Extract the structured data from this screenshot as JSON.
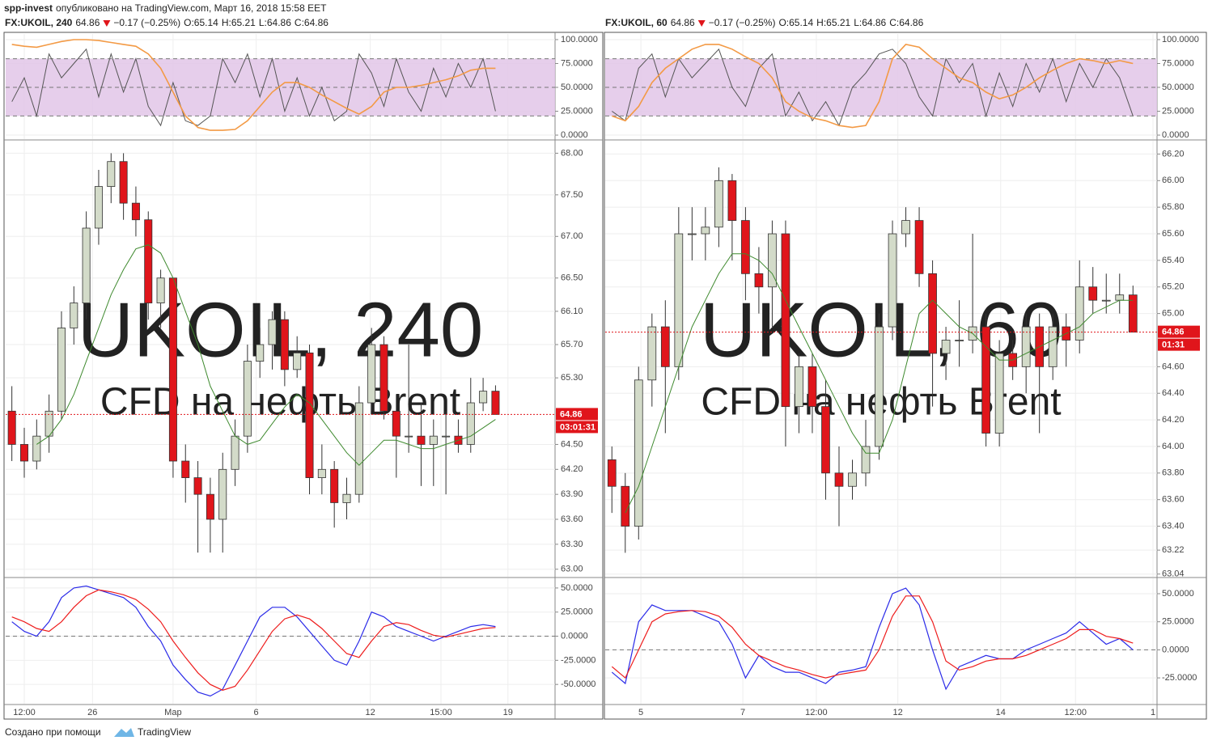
{
  "header": {
    "author": "spp-invest",
    "text": "опубликовано на TradingView.com, Март 16, 2018 15:58 EET"
  },
  "footer": {
    "text": "Создано при помощи",
    "brand": "TradingView"
  },
  "chart_data": [
    {
      "type": "candlestick",
      "symbol": "FX:UKOIL, 240",
      "last": "64.86",
      "change": "−0.17 (−0.25%)",
      "ohlc_legend": [
        {
          "label": "O:",
          "value": "65.14"
        },
        {
          "label": "H:",
          "value": "65.21"
        },
        {
          "label": "L:",
          "value": "64.86"
        },
        {
          "label": "C:",
          "value": "64.86"
        }
      ],
      "watermark": "UKOIL, 240",
      "watermark_sub": "CFD на нефть Brent",
      "up_color": "#d3dbc9",
      "down_color": "#e0151b",
      "ma_color": "#3f8a2f",
      "xlim": [
        -0.5,
        43.8
      ],
      "xticks": [
        {
          "value": 1,
          "label": "12:00"
        },
        {
          "value": 6.5,
          "label": "26"
        },
        {
          "value": 13,
          "label": "Мар"
        },
        {
          "value": 19.7,
          "label": "6"
        },
        {
          "value": 28.9,
          "label": "12"
        },
        {
          "value": 34.6,
          "label": "15:00"
        },
        {
          "value": 40,
          "label": "19"
        }
      ],
      "ylim": [
        62.91,
        68.15
      ],
      "yticks": [
        {
          "value": 68,
          "label": "68.00"
        },
        {
          "value": 67.5,
          "label": "67.50"
        },
        {
          "value": 67,
          "label": "67.00"
        },
        {
          "value": 66.5,
          "label": "66.50"
        },
        {
          "value": 66.1,
          "label": "66.10"
        },
        {
          "value": 65.7,
          "label": "65.70"
        },
        {
          "value": 65.3,
          "label": "65.30"
        },
        {
          "value": 64.5,
          "label": "64.50"
        },
        {
          "value": 64.2,
          "label": "64.20"
        },
        {
          "value": 63.9,
          "label": "63.90"
        },
        {
          "value": 63.6,
          "label": "63.60"
        },
        {
          "value": 63.3,
          "label": "63.30"
        },
        {
          "value": 63,
          "label": "63.00"
        }
      ],
      "last_price": 64.86,
      "countdown": "03:01:31",
      "open": [
        64.9,
        64.5,
        64.3,
        64.6,
        64.9,
        65.9,
        66.2,
        67.1,
        67.6,
        67.9,
        67.4,
        67.2,
        66.2,
        66.5,
        64.3,
        64.1,
        63.9,
        63.6,
        64.2,
        64.6,
        65.5,
        65.7,
        66.0,
        65.4,
        65.6,
        64.1,
        64.2,
        63.8,
        63.9,
        65.0,
        65.7,
        64.9,
        64.6,
        64.6,
        64.5,
        64.6,
        64.6,
        64.5,
        65.0,
        65.14
      ],
      "high": [
        65.2,
        64.7,
        64.8,
        65.1,
        66.1,
        66.4,
        67.3,
        67.8,
        68.0,
        68.0,
        67.6,
        67.3,
        66.6,
        66.5,
        64.5,
        64.3,
        64.1,
        64.4,
        64.8,
        65.7,
        65.9,
        66.1,
        66.1,
        65.8,
        65.7,
        64.5,
        64.3,
        64.1,
        65.2,
        65.9,
        65.8,
        65.1,
        65.7,
        65.0,
        64.8,
        64.9,
        64.8,
        65.3,
        65.3,
        65.21
      ],
      "low": [
        64.3,
        64.1,
        64.2,
        64.4,
        64.8,
        65.7,
        66.0,
        66.9,
        67.4,
        67.2,
        67.0,
        66.0,
        65.9,
        64.1,
        63.8,
        63.2,
        63.2,
        63.2,
        64.0,
        64.4,
        65.3,
        65.4,
        65.2,
        65.3,
        63.9,
        63.9,
        63.5,
        63.6,
        63.8,
        64.9,
        64.8,
        64.1,
        64.4,
        64.0,
        64.0,
        63.9,
        64.4,
        64.4,
        64.9,
        64.86
      ],
      "close": [
        64.5,
        64.3,
        64.6,
        64.9,
        65.9,
        66.2,
        67.1,
        67.6,
        67.9,
        67.4,
        67.2,
        66.2,
        66.5,
        64.3,
        64.1,
        63.9,
        63.6,
        64.2,
        64.6,
        65.5,
        65.7,
        66.0,
        65.4,
        65.6,
        64.1,
        64.2,
        63.8,
        63.9,
        65.0,
        65.7,
        64.9,
        64.6,
        64.6,
        64.5,
        64.6,
        64.6,
        64.5,
        65.0,
        65.14,
        64.86
      ],
      "ma": [
        null,
        null,
        64.5,
        64.6,
        64.8,
        65.1,
        65.5,
        65.9,
        66.3,
        66.6,
        66.85,
        66.9,
        66.8,
        66.5,
        66.1,
        65.7,
        65.2,
        64.9,
        64.6,
        64.5,
        64.55,
        64.75,
        64.95,
        65.1,
        65.0,
        64.8,
        64.6,
        64.4,
        64.25,
        64.4,
        64.55,
        64.55,
        64.5,
        64.45,
        64.45,
        64.5,
        64.55,
        64.6,
        64.7,
        64.8
      ],
      "stoch": {
        "ylim": [
          -4.2,
          105.9
        ],
        "yticks": [
          {
            "value": 100,
            "label": "100.0000"
          },
          {
            "value": 75,
            "label": "75.0000"
          },
          {
            "value": 50,
            "label": "50.0000"
          },
          {
            "value": 25,
            "label": "25.0000"
          },
          {
            "value": 0,
            "label": "0.0000"
          }
        ],
        "bands": [
          20,
          50,
          80
        ],
        "band_color": "#e2c6e8",
        "series": [
          {
            "color": "#555555",
            "values": [
              35,
              60,
              20,
              85,
              60,
              75,
              90,
              40,
              85,
              45,
              80,
              30,
              10,
              55,
              15,
              10,
              20,
              80,
              55,
              85,
              40,
              80,
              25,
              60,
              20,
              50,
              15,
              25,
              85,
              65,
              30,
              80,
              45,
              25,
              70,
              40,
              75,
              50,
              80,
              25
            ]
          },
          {
            "color": "#f39a45",
            "values": [
              95,
              93,
              92,
              95,
              98,
              100,
              100,
              99,
              97,
              95,
              93,
              85,
              70,
              45,
              20,
              8,
              5,
              5,
              6,
              15,
              30,
              45,
              55,
              55,
              50,
              42,
              35,
              28,
              22,
              30,
              45,
              50,
              50,
              52,
              55,
              58,
              62,
              68,
              70,
              70
            ]
          }
        ]
      },
      "macd": {
        "ylim": [
          -70,
          60
        ],
        "yticks": [
          {
            "value": 50,
            "label": "50.0000"
          },
          {
            "value": 25,
            "label": "25.0000"
          },
          {
            "value": 0,
            "label": "0.0000"
          },
          {
            "value": -25,
            "label": "-25.0000"
          },
          {
            "value": -50,
            "label": "-50.0000"
          }
        ],
        "bands": [
          0
        ],
        "series": [
          {
            "color": "#2b2be8",
            "values": [
              15,
              5,
              0,
              15,
              40,
              50,
              52,
              48,
              44,
              40,
              30,
              10,
              -5,
              -30,
              -45,
              -58,
              -62,
              -55,
              -30,
              -5,
              20,
              30,
              30,
              20,
              5,
              -10,
              -25,
              -30,
              -5,
              25,
              20,
              10,
              5,
              0,
              -5,
              0,
              5,
              10,
              12,
              10
            ]
          },
          {
            "color": "#ee1c1c",
            "values": [
              20,
              15,
              8,
              5,
              15,
              30,
              42,
              48,
              46,
              43,
              38,
              28,
              15,
              -5,
              -22,
              -38,
              -50,
              -56,
              -52,
              -35,
              -15,
              5,
              18,
              22,
              18,
              8,
              -5,
              -18,
              -22,
              -5,
              10,
              14,
              12,
              6,
              1,
              -1,
              2,
              5,
              8,
              9
            ]
          }
        ]
      }
    },
    {
      "type": "candlestick",
      "symbol": "FX:UKOIL, 60",
      "last": "64.86",
      "change": "−0.17 (−0.25%)",
      "ohlc_legend": [
        {
          "label": "O:",
          "value": "65.14"
        },
        {
          "label": "H:",
          "value": "65.21"
        },
        {
          "label": "L:",
          "value": "64.86"
        },
        {
          "label": "C:",
          "value": "64.86"
        }
      ],
      "watermark": "UKOIL, 60",
      "watermark_sub": "CFD на нефть Brent",
      "up_color": "#d3dbc9",
      "down_color": "#e0151b",
      "ma_color": "#3f8a2f",
      "xlim": [
        -0.5,
        40.8
      ],
      "xticks": [
        {
          "value": 2.17,
          "label": "5"
        },
        {
          "value": 9.8,
          "label": "7"
        },
        {
          "value": 15.3,
          "label": "12:00"
        },
        {
          "value": 21.4,
          "label": "12"
        },
        {
          "value": 29.1,
          "label": "14"
        },
        {
          "value": 34.7,
          "label": "12:00"
        },
        {
          "value": 40.5,
          "label": "1"
        }
      ],
      "ylim": [
        63.02,
        66.3
      ],
      "yticks": [
        {
          "value": 66.2,
          "label": "66.20"
        },
        {
          "value": 66,
          "label": "66.00"
        },
        {
          "value": 65.8,
          "label": "65.80"
        },
        {
          "value": 65.6,
          "label": "65.60"
        },
        {
          "value": 65.4,
          "label": "65.40"
        },
        {
          "value": 65.2,
          "label": "65.20"
        },
        {
          "value": 65,
          "label": "65.00"
        },
        {
          "value": 64.6,
          "label": "64.60"
        },
        {
          "value": 64.4,
          "label": "64.40"
        },
        {
          "value": 64.2,
          "label": "64.20"
        },
        {
          "value": 64,
          "label": "64.00"
        },
        {
          "value": 63.8,
          "label": "63.80"
        },
        {
          "value": 63.6,
          "label": "63.60"
        },
        {
          "value": 63.4,
          "label": "63.40"
        },
        {
          "value": 63.22,
          "label": "63.22"
        },
        {
          "value": 63.04,
          "label": "63.04"
        }
      ],
      "last_price": 64.86,
      "countdown": "01:31",
      "open": [
        63.9,
        63.7,
        63.4,
        64.5,
        64.9,
        64.6,
        65.6,
        65.6,
        65.65,
        66.0,
        65.7,
        65.3,
        65.2,
        65.6,
        64.3,
        64.6,
        64.3,
        63.8,
        63.7,
        63.8,
        64.0,
        64.9,
        65.6,
        65.7,
        65.3,
        64.7,
        64.8,
        64.8,
        64.9,
        64.1,
        64.7,
        64.6,
        64.9,
        64.6,
        64.9,
        64.8,
        65.2,
        65.1,
        65.1,
        65.14
      ],
      "high": [
        64.0,
        63.8,
        64.6,
        65.0,
        65.1,
        65.8,
        65.8,
        65.8,
        66.1,
        66.05,
        65.8,
        65.5,
        65.7,
        65.7,
        64.7,
        64.7,
        64.5,
        64.0,
        63.9,
        64.2,
        65.0,
        65.7,
        65.8,
        65.8,
        65.4,
        64.9,
        65.1,
        65.6,
        65.0,
        64.8,
        64.8,
        65.0,
        65.0,
        65.0,
        65.0,
        65.4,
        65.35,
        65.3,
        65.3,
        65.21
      ],
      "low": [
        63.5,
        63.2,
        63.3,
        64.3,
        64.1,
        64.5,
        65.4,
        65.4,
        65.5,
        65.4,
        65.1,
        65.0,
        64.9,
        64.0,
        64.1,
        64.1,
        63.6,
        63.4,
        63.6,
        63.7,
        63.9,
        64.8,
        65.5,
        65.2,
        64.3,
        64.5,
        64.6,
        64.7,
        64.0,
        64.0,
        64.5,
        64.4,
        64.1,
        64.5,
        64.6,
        64.7,
        65.0,
        65.0,
        65.0,
        64.86
      ],
      "close": [
        63.7,
        63.4,
        64.5,
        64.9,
        64.6,
        65.6,
        65.6,
        65.65,
        66.0,
        65.7,
        65.3,
        65.2,
        65.6,
        64.3,
        64.6,
        64.3,
        63.8,
        63.7,
        63.8,
        64.0,
        64.9,
        65.6,
        65.7,
        65.3,
        64.7,
        64.8,
        64.8,
        64.9,
        64.1,
        64.7,
        64.6,
        64.9,
        64.6,
        64.9,
        64.8,
        65.2,
        65.1,
        65.1,
        65.14,
        64.86
      ],
      "ma": [
        null,
        63.5,
        63.7,
        64.0,
        64.3,
        64.6,
        64.9,
        65.1,
        65.3,
        65.45,
        65.45,
        65.4,
        65.3,
        65.1,
        64.9,
        64.7,
        64.5,
        64.3,
        64.1,
        63.95,
        63.95,
        64.2,
        64.6,
        65.0,
        65.1,
        65.0,
        64.9,
        64.85,
        64.75,
        64.65,
        64.65,
        64.7,
        64.75,
        64.8,
        64.85,
        64.9,
        65.0,
        65.05,
        65.1,
        65.1
      ],
      "stoch": {
        "ylim": [
          -4.2,
          105.9
        ],
        "yticks": [
          {
            "value": 100,
            "label": "100.0000"
          },
          {
            "value": 75,
            "label": "75.0000"
          },
          {
            "value": 50,
            "label": "50.0000"
          },
          {
            "value": 25,
            "label": "25.0000"
          },
          {
            "value": 0,
            "label": "0.0000"
          }
        ],
        "bands": [
          20,
          50,
          80
        ],
        "band_color": "#e2c6e8",
        "series": [
          {
            "color": "#555555",
            "values": [
              25,
              15,
              70,
              85,
              40,
              80,
              60,
              75,
              90,
              50,
              30,
              70,
              85,
              20,
              45,
              15,
              35,
              10,
              50,
              65,
              85,
              90,
              75,
              40,
              20,
              80,
              55,
              75,
              20,
              65,
              30,
              75,
              45,
              80,
              35,
              75,
              50,
              80,
              60,
              20
            ]
          },
          {
            "color": "#f39a45",
            "values": [
              20,
              15,
              30,
              55,
              70,
              80,
              90,
              95,
              95,
              90,
              82,
              75,
              60,
              35,
              25,
              18,
              15,
              10,
              8,
              10,
              35,
              80,
              95,
              92,
              80,
              70,
              60,
              55,
              45,
              38,
              42,
              50,
              60,
              68,
              75,
              80,
              78,
              75,
              78,
              75
            ]
          }
        ]
      },
      "macd": {
        "ylim": [
          -48,
          63.7
        ],
        "yticks": [
          {
            "value": 50,
            "label": "50.0000"
          },
          {
            "value": 25,
            "label": "25.0000"
          },
          {
            "value": 0,
            "label": "0.0000"
          },
          {
            "value": -25,
            "label": "-25.0000"
          }
        ],
        "bands": [
          0
        ],
        "series": [
          {
            "color": "#2b2be8",
            "values": [
              -20,
              -30,
              25,
              40,
              35,
              35,
              35,
              30,
              25,
              5,
              -25,
              -5,
              -15,
              -20,
              -20,
              -25,
              -30,
              -20,
              -18,
              -15,
              20,
              50,
              55,
              40,
              0,
              -35,
              -15,
              -10,
              -5,
              -8,
              -8,
              0,
              5,
              10,
              15,
              25,
              15,
              5,
              10,
              0
            ]
          },
          {
            "color": "#ee1c1c",
            "values": [
              -15,
              -25,
              0,
              25,
              32,
              34,
              35,
              34,
              30,
              20,
              5,
              -5,
              -10,
              -15,
              -18,
              -22,
              -25,
              -22,
              -20,
              -18,
              0,
              30,
              48,
              48,
              25,
              -10,
              -18,
              -15,
              -10,
              -8,
              -8,
              -5,
              0,
              5,
              10,
              18,
              18,
              12,
              10,
              6
            ]
          }
        ]
      }
    }
  ]
}
